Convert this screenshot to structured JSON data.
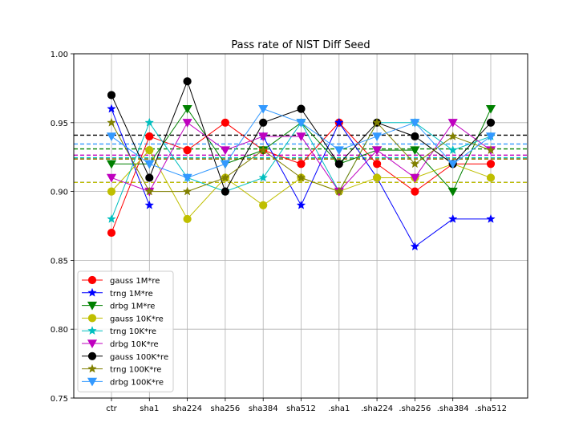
{
  "chart_data": {
    "type": "line",
    "title": "Pass rate of NIST Diff Seed",
    "xlabel": "",
    "ylabel": "",
    "categories": [
      "ctr",
      "sha1",
      "sha224",
      "sha256",
      "sha384",
      "sha512",
      ".sha1",
      ".sha224",
      ".sha256",
      ".sha384",
      ".sha512"
    ],
    "ylim": [
      0.75,
      1.0
    ],
    "yticks": [
      0.75,
      0.8,
      0.85,
      0.9,
      0.95,
      1.0
    ],
    "ytick_labels": [
      "0.75",
      "0.80",
      "0.85",
      "0.90",
      "0.95",
      "1.00"
    ],
    "grid": true,
    "legend_position": "lower-left",
    "series": [
      {
        "name": "gauss 1M*re",
        "color": "#ff0000",
        "marker": "circle",
        "values": [
          0.87,
          0.94,
          0.93,
          0.95,
          0.93,
          0.92,
          0.95,
          0.92,
          0.9,
          0.92,
          0.92
        ],
        "mean": 0.9236
      },
      {
        "name": "trng 1M*re",
        "color": "#0000ff",
        "marker": "star",
        "values": [
          0.96,
          0.89,
          null,
          null,
          0.94,
          0.89,
          0.95,
          0.91,
          0.86,
          0.88,
          0.88
        ],
        "mean": 0.9066
      },
      {
        "name": "drbg 1M*re",
        "color": "#008000",
        "marker": "triangle-down",
        "values": [
          0.92,
          0.92,
          0.96,
          0.92,
          0.93,
          0.95,
          0.92,
          0.93,
          0.93,
          0.9,
          0.96
        ],
        "mean": 0.9309
      },
      {
        "name": "gauss 10K*re",
        "color": "#bfbf00",
        "marker": "circle",
        "values": [
          0.9,
          0.93,
          0.88,
          0.91,
          0.89,
          0.91,
          0.9,
          0.91,
          0.91,
          0.92,
          0.91
        ],
        "mean": 0.9066
      },
      {
        "name": "trng 10K*re",
        "color": "#00bfbf",
        "marker": "star",
        "values": [
          0.88,
          0.95,
          0.91,
          0.9,
          0.91,
          0.95,
          0.9,
          0.95,
          0.95,
          0.93,
          0.94
        ],
        "mean": 0.9245
      },
      {
        "name": "drbg 10K*re",
        "color": "#bf00bf",
        "marker": "triangle-down",
        "values": [
          0.91,
          0.9,
          0.95,
          0.93,
          0.94,
          0.94,
          0.9,
          0.93,
          0.91,
          0.95,
          0.93
        ],
        "mean": 0.9264
      },
      {
        "name": "gauss 100K*re",
        "color": "#000000",
        "marker": "circle",
        "values": [
          0.97,
          0.91,
          0.98,
          0.9,
          0.95,
          0.96,
          0.92,
          0.95,
          0.94,
          0.92,
          0.95
        ],
        "mean": 0.9409
      },
      {
        "name": "trng 100K*re",
        "color": "#808000",
        "marker": "star",
        "values": [
          0.95,
          0.9,
          0.9,
          0.91,
          0.93,
          0.91,
          0.9,
          0.95,
          0.92,
          0.94,
          0.93
        ],
        "mean": 0.9236
      },
      {
        "name": "drbg 100K*re",
        "color": "#3399ff",
        "marker": "triangle-down",
        "values": [
          0.94,
          0.92,
          0.91,
          0.92,
          0.96,
          0.95,
          0.93,
          0.94,
          0.95,
          0.92,
          0.94
        ],
        "mean": 0.9345
      }
    ]
  }
}
